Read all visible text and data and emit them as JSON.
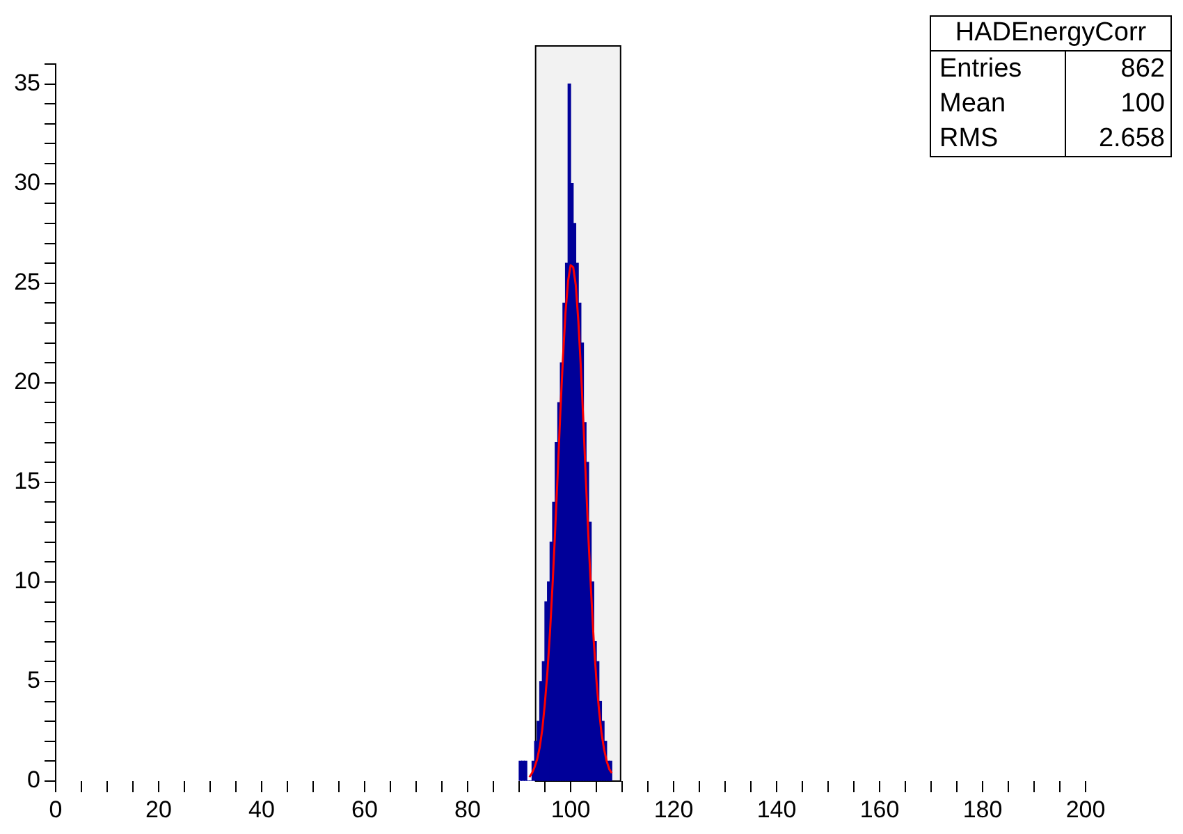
{
  "chart_data": {
    "type": "histogram",
    "bins": [
      90,
      90.5,
      91,
      91.5,
      92,
      92.5,
      93,
      93.5,
      94,
      94.5,
      95,
      95.5,
      96,
      96.5,
      97,
      97.5,
      98,
      98.5,
      99,
      99.5,
      100,
      100.5,
      101,
      101.5,
      102,
      102.5,
      103,
      103.5,
      104,
      104.5,
      105,
      105.5,
      106,
      106.5,
      107,
      107.5,
      108
    ],
    "series": [
      {
        "color": "#000099",
        "values": [
          1,
          1,
          1,
          0,
          0,
          1,
          2,
          3,
          5,
          6,
          9,
          10,
          12,
          14,
          17,
          19,
          21,
          24,
          26,
          35,
          30,
          28,
          26,
          24,
          22,
          18,
          16,
          13,
          10,
          7,
          6,
          4,
          3,
          2,
          1,
          1
        ]
      },
      {
        "type": "line",
        "color": "#ff0000",
        "x": [
          92,
          92.5,
          93,
          93.5,
          94,
          94.5,
          95,
          95.5,
          96,
          96.5,
          97,
          97.5,
          98,
          98.5,
          99,
          99.5,
          100,
          100.5,
          101,
          101.5,
          102,
          102.5,
          103,
          103.5,
          104,
          104.5,
          105,
          105.5,
          106,
          106.5,
          107,
          107.5,
          108
        ],
        "values": [
          0.2,
          0.4,
          0.7,
          1.1,
          1.7,
          2.6,
          3.9,
          5.5,
          7.5,
          9.9,
          12.6,
          15.5,
          18.5,
          21.2,
          23.5,
          25.1,
          25.9,
          25.8,
          24.9,
          23.1,
          20.7,
          17.9,
          14.9,
          12.0,
          9.4,
          7.0,
          5.1,
          3.6,
          2.4,
          1.6,
          1.0,
          0.6,
          0.4
        ]
      }
    ],
    "xlim": [
      0,
      200
    ],
    "xticks": [
      0,
      {
        "value": 5,
        "label": null
      },
      {
        "value": 10,
        "label": null
      },
      {
        "value": 15,
        "label": null
      },
      20,
      {
        "value": 25,
        "label": null
      },
      {
        "value": 30,
        "label": null
      },
      {
        "value": 35,
        "label": null
      },
      40,
      {
        "value": 45,
        "label": null
      },
      {
        "value": 50,
        "label": null
      },
      {
        "value": 55,
        "label": null
      },
      60,
      {
        "value": 65,
        "label": null
      },
      {
        "value": 70,
        "label": null
      },
      {
        "value": 75,
        "label": null
      },
      80,
      {
        "value": 85,
        "label": null
      },
      {
        "value": 90,
        "label": null
      },
      {
        "value": 95,
        "label": null
      },
      100,
      {
        "value": 105,
        "label": null
      },
      {
        "value": 110,
        "label": null
      },
      {
        "value": 115,
        "label": null
      },
      120,
      {
        "value": 125,
        "label": null
      },
      {
        "value": 130,
        "label": null
      },
      {
        "value": 135,
        "label": null
      },
      140,
      {
        "value": 145,
        "label": null
      },
      {
        "value": 150,
        "label": null
      },
      {
        "value": 155,
        "label": null
      },
      160,
      {
        "value": 165,
        "label": null
      },
      {
        "value": 170,
        "label": null
      },
      {
        "value": 175,
        "label": null
      },
      180,
      {
        "value": 185,
        "label": null
      },
      {
        "value": 190,
        "label": null
      },
      {
        "value": 195,
        "label": null
      },
      200
    ],
    "ylim": [
      0,
      36
    ],
    "yticks": [
      0,
      {
        "value": 1,
        "label": null
      },
      {
        "value": 2,
        "label": null
      },
      {
        "value": 3,
        "label": null
      },
      {
        "value": 4,
        "label": null
      },
      5,
      {
        "value": 6,
        "label": null
      },
      {
        "value": 7,
        "label": null
      },
      {
        "value": 8,
        "label": null
      },
      {
        "value": 9,
        "label": null
      },
      10,
      {
        "value": 11,
        "label": null
      },
      {
        "value": 12,
        "label": null
      },
      {
        "value": 13,
        "label": null
      },
      {
        "value": 14,
        "label": null
      },
      15,
      {
        "value": 16,
        "label": null
      },
      {
        "value": 17,
        "label": null
      },
      {
        "value": 18,
        "label": null
      },
      {
        "value": 19,
        "label": null
      },
      20,
      {
        "value": 21,
        "label": null
      },
      {
        "value": 22,
        "label": null
      },
      {
        "value": 23,
        "label": null
      },
      {
        "value": 24,
        "label": null
      },
      25,
      {
        "value": 26,
        "label": null
      },
      {
        "value": 27,
        "label": null
      },
      {
        "value": 28,
        "label": null
      },
      {
        "value": 29,
        "label": null
      },
      30,
      {
        "value": 31,
        "label": null
      },
      {
        "value": 32,
        "label": null
      },
      {
        "value": 33,
        "label": null
      },
      {
        "value": 34,
        "label": null
      },
      35,
      {
        "value": 36,
        "label": null
      }
    ],
    "bands": [
      {
        "axis": "x",
        "from": 93.2,
        "to": 109.7,
        "color": "#000000"
      }
    ],
    "annotations": [
      "HADEnergyCorr",
      "Entries",
      "862",
      "Mean",
      "100",
      "RMS",
      "2.658"
    ],
    "legend": false
  }
}
